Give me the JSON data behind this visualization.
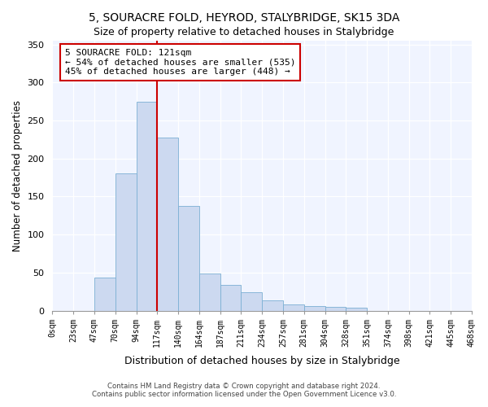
{
  "title": "5, SOURACRE FOLD, HEYROD, STALYBRIDGE, SK15 3DA",
  "subtitle": "Size of property relative to detached houses in Stalybridge",
  "xlabel": "Distribution of detached houses by size in Stalybridge",
  "ylabel": "Number of detached properties",
  "bin_labels": [
    "0sqm",
    "23sqm",
    "47sqm",
    "70sqm",
    "94sqm",
    "117sqm",
    "140sqm",
    "164sqm",
    "187sqm",
    "211sqm",
    "234sqm",
    "257sqm",
    "281sqm",
    "304sqm",
    "328sqm",
    "351sqm",
    "374sqm",
    "398sqm",
    "421sqm",
    "445sqm",
    "468sqm"
  ],
  "bar_values": [
    0,
    0,
    44,
    180,
    275,
    228,
    138,
    49,
    34,
    24,
    13,
    8,
    6,
    5,
    4,
    0,
    0,
    0,
    0,
    0
  ],
  "bar_color": "#ccd9f0",
  "bar_edge_color": "#7bafd4",
  "vline_x_index": 5,
  "vline_color": "#cc0000",
  "ylim": [
    0,
    355
  ],
  "yticks": [
    0,
    50,
    100,
    150,
    200,
    250,
    300,
    350
  ],
  "annotation_title": "5 SOURACRE FOLD: 121sqm",
  "annotation_line1": "← 54% of detached houses are smaller (535)",
  "annotation_line2": "45% of detached houses are larger (448) →",
  "annotation_box_facecolor": "#ffffff",
  "annotation_box_edgecolor": "#cc0000",
  "footer1": "Contains HM Land Registry data © Crown copyright and database right 2024.",
  "footer2": "Contains public sector information licensed under the Open Government Licence v3.0.",
  "bg_color": "#f0f4ff"
}
